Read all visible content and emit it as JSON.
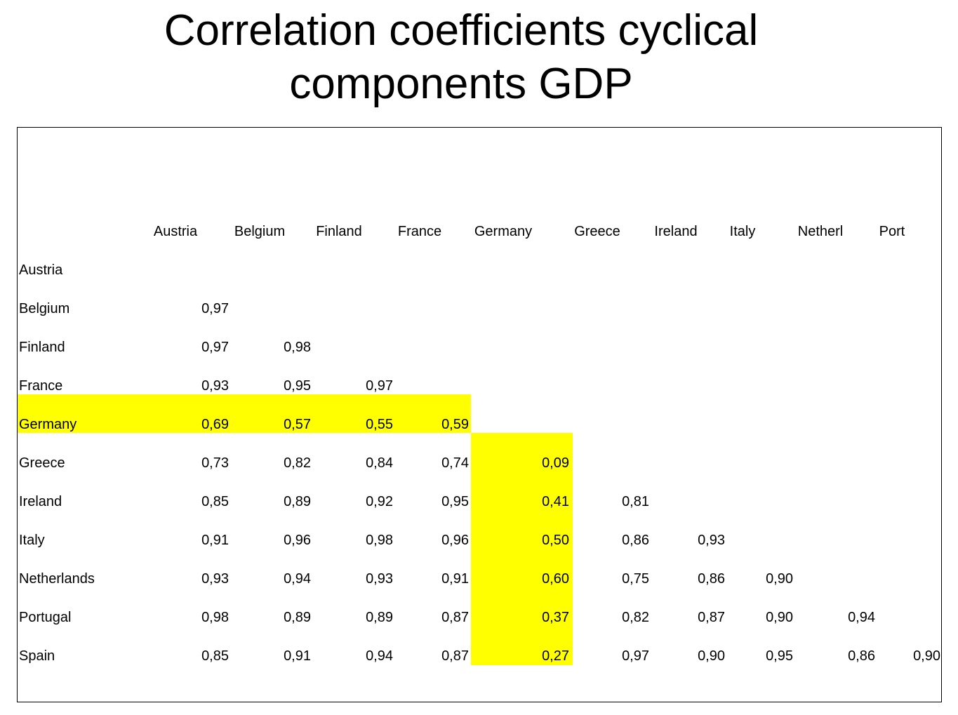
{
  "title_lines": [
    "Correlation coefficients cyclical",
    "components GDP"
  ],
  "column_headers": [
    "Austria",
    "Belgium",
    "Finland",
    "France",
    "Germany",
    "Greece",
    "Ireland",
    "Italy",
    "Netherl",
    "Port"
  ],
  "rows": [
    {
      "label": "Austria",
      "values": []
    },
    {
      "label": "Belgium",
      "values": [
        "0,97"
      ]
    },
    {
      "label": "Finland",
      "values": [
        "0,97",
        "0,98"
      ]
    },
    {
      "label": "France",
      "values": [
        "0,93",
        "0,95",
        "0,97"
      ]
    },
    {
      "label": "Germany",
      "values": [
        "0,69",
        "0,57",
        "0,55",
        "0,59"
      ]
    },
    {
      "label": "Greece",
      "values": [
        "0,73",
        "0,82",
        "0,84",
        "0,74",
        "0,09"
      ]
    },
    {
      "label": "Ireland",
      "values": [
        "0,85",
        "0,89",
        "0,92",
        "0,95",
        "0,41",
        "0,81"
      ]
    },
    {
      "label": "Italy",
      "values": [
        "0,91",
        "0,96",
        "0,98",
        "0,96",
        "0,50",
        "0,86",
        "0,93"
      ]
    },
    {
      "label": "Netherlands",
      "values": [
        "0,93",
        "0,94",
        "0,93",
        "0,91",
        "0,60",
        "0,75",
        "0,86",
        "0,90"
      ]
    },
    {
      "label": "Portugal",
      "values": [
        "0,98",
        "0,89",
        "0,89",
        "0,87",
        "0,37",
        "0,82",
        "0,87",
        "0,90",
        "0,94"
      ]
    },
    {
      "label": "Spain",
      "values": [
        "0,85",
        "0,91",
        "0,94",
        "0,87",
        "0,27",
        "0,97",
        "0,90",
        "0,95",
        "0,86",
        "0,90"
      ]
    }
  ],
  "colors": {
    "highlight": "#ffff00",
    "text": "#000000",
    "border": "#000000",
    "background": "#ffffff"
  }
}
